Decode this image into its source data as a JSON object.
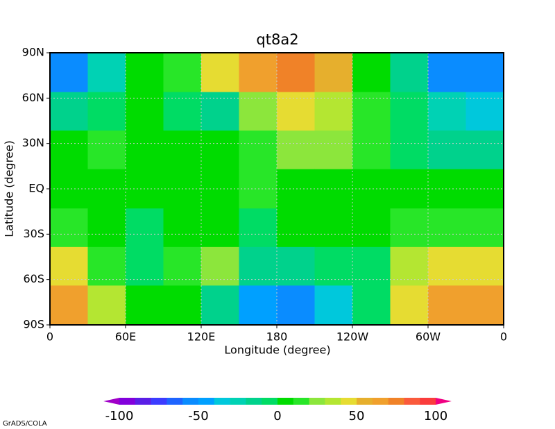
{
  "chart_data": {
    "type": "contour",
    "title": "qt8a2",
    "x_label": "Longitude (degree)",
    "y_label": "Latitude (degree)",
    "x": [
      15,
      45,
      75,
      105,
      135,
      165,
      195,
      225,
      255,
      285,
      315,
      345
    ],
    "y": [
      77,
      51,
      26,
      0,
      -26,
      -51,
      -77
    ],
    "z": [
      [
        -60,
        -30,
        5,
        15,
        40,
        60,
        70,
        50,
        5,
        -20,
        -60,
        -60
      ],
      [
        -20,
        -5,
        5,
        -10,
        -20,
        20,
        40,
        35,
        10,
        -10,
        -30,
        -40
      ],
      [
        0,
        15,
        5,
        5,
        5,
        10,
        20,
        20,
        10,
        -5,
        -20,
        -20
      ],
      [
        5,
        5,
        5,
        5,
        5,
        10,
        5,
        5,
        5,
        5,
        5,
        5
      ],
      [
        15,
        5,
        -5,
        5,
        5,
        -5,
        5,
        5,
        5,
        10,
        15,
        15
      ],
      [
        40,
        15,
        -5,
        15,
        20,
        -20,
        -20,
        -10,
        -5,
        30,
        45,
        40
      ],
      [
        60,
        30,
        5,
        5,
        -20,
        -50,
        -60,
        -40,
        -10,
        40,
        65,
        60
      ]
    ],
    "xlim": [
      0,
      360
    ],
    "ylim": [
      -90,
      90
    ],
    "xticks": [
      0,
      {
        "value": 60,
        "label": "60E"
      },
      {
        "value": 120,
        "label": "120E"
      },
      180,
      {
        "value": 240,
        "label": "120W"
      },
      {
        "value": 300,
        "label": "60W"
      },
      {
        "value": 360,
        "label": "0"
      }
    ],
    "yticks": [
      {
        "value": -90,
        "label": "90S"
      },
      {
        "value": -60,
        "label": "60S"
      },
      {
        "value": -30,
        "label": "30S"
      },
      {
        "value": 0,
        "label": "EQ"
      },
      {
        "value": 30,
        "label": "30N"
      },
      {
        "value": 60,
        "label": "60N"
      },
      {
        "value": 90,
        "label": "90N"
      }
    ],
    "grid": true,
    "levels": [
      -100,
      -90,
      -80,
      -70,
      -60,
      -50,
      -40,
      -30,
      -20,
      -10,
      0,
      10,
      20,
      30,
      40,
      50,
      60,
      70,
      80,
      90,
      100
    ],
    "colors": [
      "#a000c8",
      "#8200dc",
      "#5a1ee6",
      "#3c3cff",
      "#1e64ff",
      "#0a8cff",
      "#00a0ff",
      "#00c8dc",
      "#00d2b4",
      "#00d28c",
      "#00dc64",
      "#00dc00",
      "#28e628",
      "#8ce63c",
      "#b4e632",
      "#e6dc32",
      "#e6af2d",
      "#f0a02d",
      "#f08228",
      "#fa5a3c",
      "#fa3c3c",
      "#f00082"
    ],
    "colorbar_ticks": [
      -100,
      -50,
      0,
      50,
      100
    ],
    "footer": "GrADS/COLA"
  }
}
